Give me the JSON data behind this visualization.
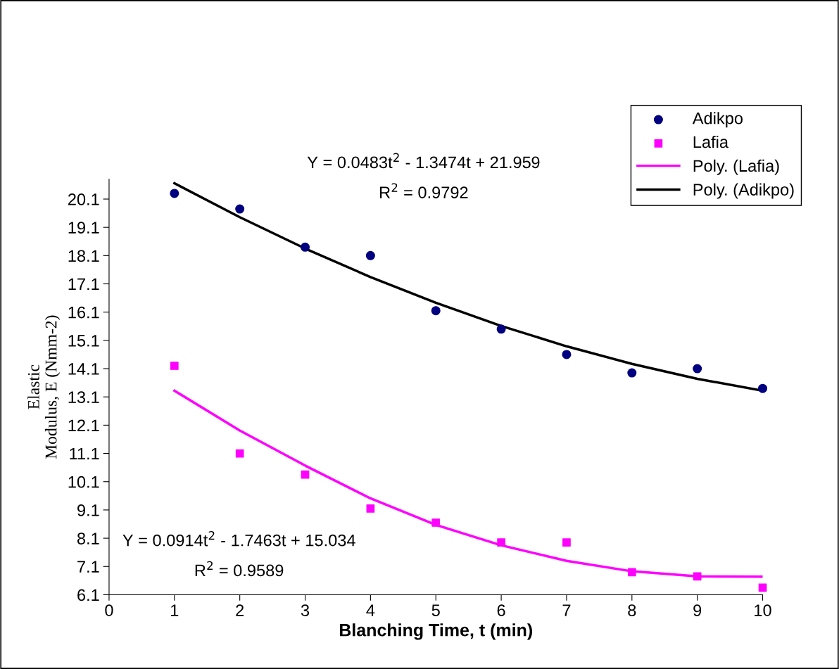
{
  "chart_data": {
    "type": "scatter",
    "xlabel": "Blanching Time, t (min)",
    "ylabel": "Elastic\nModulus, E (Nmm-2)",
    "x": [
      1,
      2,
      3,
      4,
      5,
      6,
      7,
      8,
      9,
      10
    ],
    "series": [
      {
        "name": "Adikpo",
        "marker": "circle",
        "color": "#000080",
        "values": [
          20.3,
          19.75,
          18.4,
          18.1,
          16.15,
          15.5,
          14.6,
          13.95,
          14.1,
          13.4
        ]
      },
      {
        "name": "Lafia",
        "marker": "square",
        "color": "#ff00ff",
        "values": [
          14.2,
          11.1,
          10.35,
          9.15,
          8.65,
          7.95,
          7.95,
          6.9,
          6.75,
          6.35
        ]
      },
      {
        "name": "Poly. (Lafia)",
        "type": "line",
        "marker": "none",
        "color": "#ff00ff",
        "x": [
          1,
          2,
          3,
          4,
          5,
          6,
          7,
          8,
          9,
          10
        ],
        "values": [
          13.32,
          11.91,
          10.67,
          9.51,
          8.57,
          7.85,
          7.3,
          6.93,
          6.75,
          6.74
        ]
      },
      {
        "name": "Poly. (Adikpo)",
        "type": "line",
        "marker": "none",
        "color": "#000000",
        "x": [
          1,
          2,
          3,
          4,
          5,
          6,
          7,
          8,
          9,
          10
        ],
        "values": [
          20.66,
          19.46,
          18.35,
          17.34,
          16.43,
          15.61,
          14.89,
          14.27,
          13.74,
          13.32
        ]
      }
    ],
    "annotations": [
      "Y = 0.0483t$^{2}$ - 1.3474t + 21.959",
      "R$^{2}$ = 0.9792",
      "Y = 0.0914t$^{2}$ - 1.7463t + 15.034",
      "R$^{2}$ = 0.9589"
    ],
    "xlim": [
      0,
      10
    ],
    "xticks": [
      0,
      1,
      2,
      3,
      4,
      5,
      6,
      7,
      8,
      9,
      10
    ],
    "ylim": [
      6.1,
      20.8
    ],
    "yticks": [
      6.1,
      7.1,
      8.1,
      9.1,
      10.1,
      11.1,
      12.1,
      13.1,
      14.1,
      15.1,
      16.1,
      17.1,
      18.1,
      19.1,
      20.1
    ],
    "grid": false,
    "legend": "top right",
    "line_style": "solid"
  }
}
